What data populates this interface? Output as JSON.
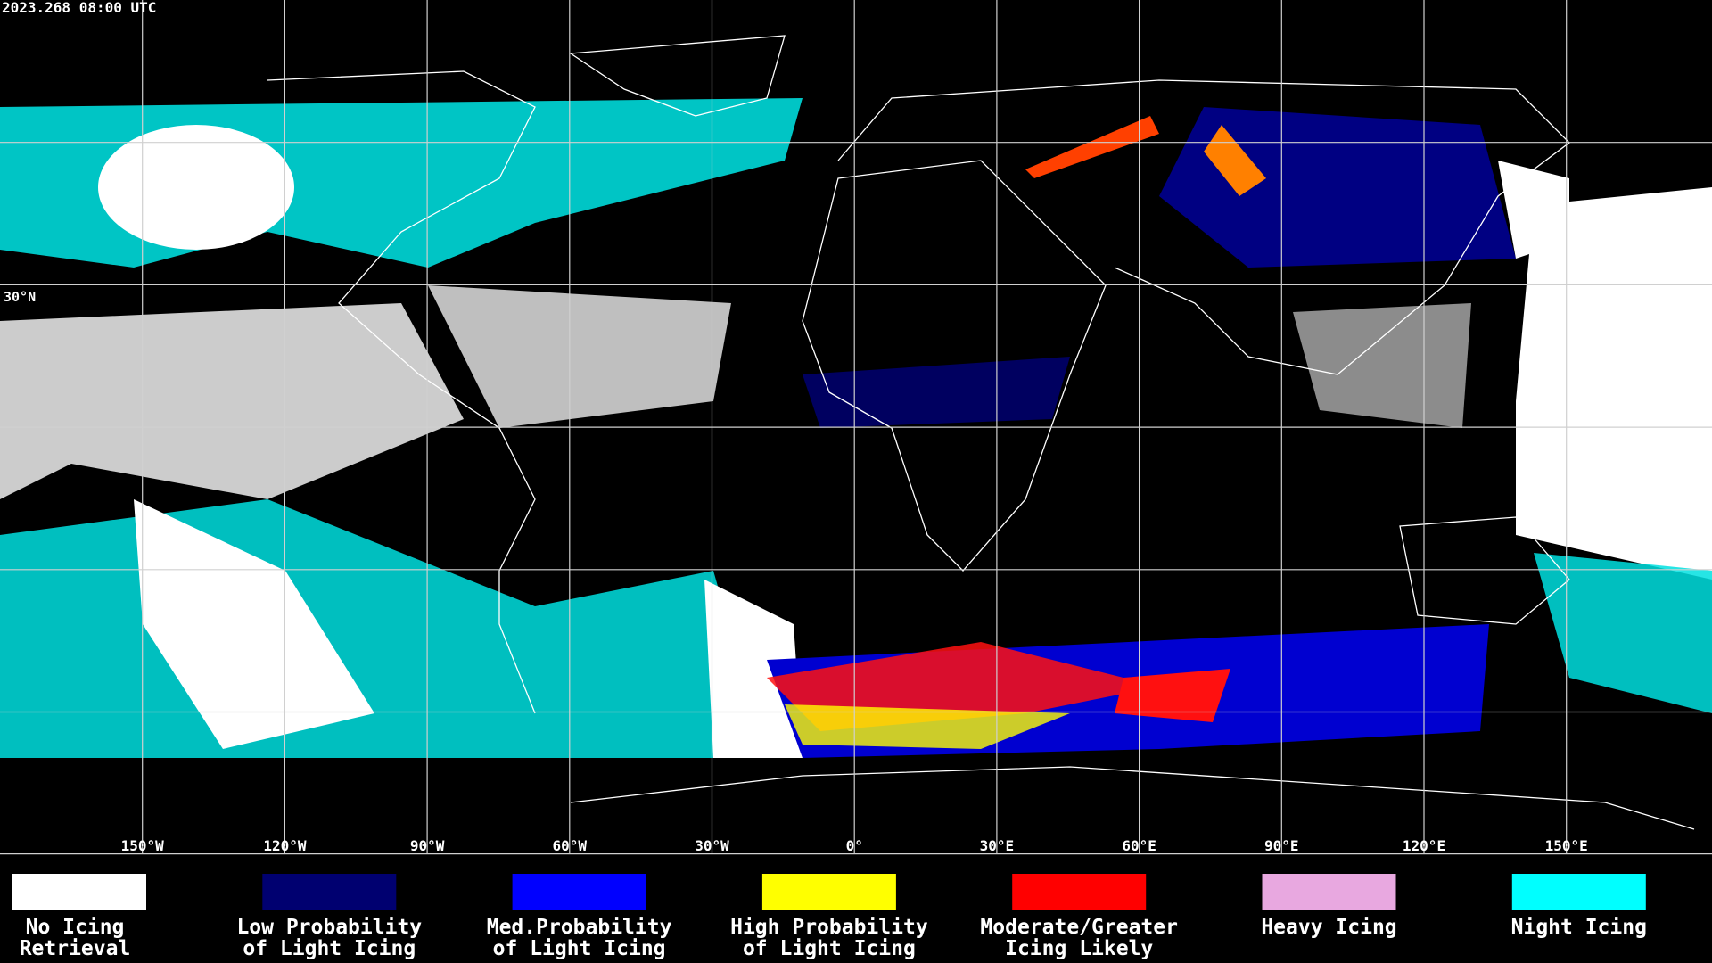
{
  "header": {
    "timestamp": "2023.268 08:00 UTC"
  },
  "map": {
    "longitude_labels": [
      "150°W",
      "120°W",
      "90°W",
      "60°W",
      "30°W",
      "0°",
      "30°E",
      "60°E",
      "90°E",
      "120°E",
      "150°E"
    ],
    "latitude_label": "30°N"
  },
  "legend": {
    "items": [
      {
        "lines": [
          "No Icing",
          "Retrieval"
        ],
        "color": "#ffffff"
      },
      {
        "lines": [
          "Low Probability",
          "of Light Icing"
        ],
        "color": "#000070"
      },
      {
        "lines": [
          "Med.Probability",
          "of Light Icing"
        ],
        "color": "#0000ff"
      },
      {
        "lines": [
          "High Probability",
          "of Light Icing"
        ],
        "color": "#ffff00"
      },
      {
        "lines": [
          "Moderate/Greater",
          "Icing Likely"
        ],
        "color": "#ff0000"
      },
      {
        "lines": [
          "Heavy Icing"
        ],
        "color": "#e8a8e0"
      },
      {
        "lines": [
          "Night Icing"
        ],
        "color": "#00ffff"
      }
    ]
  }
}
